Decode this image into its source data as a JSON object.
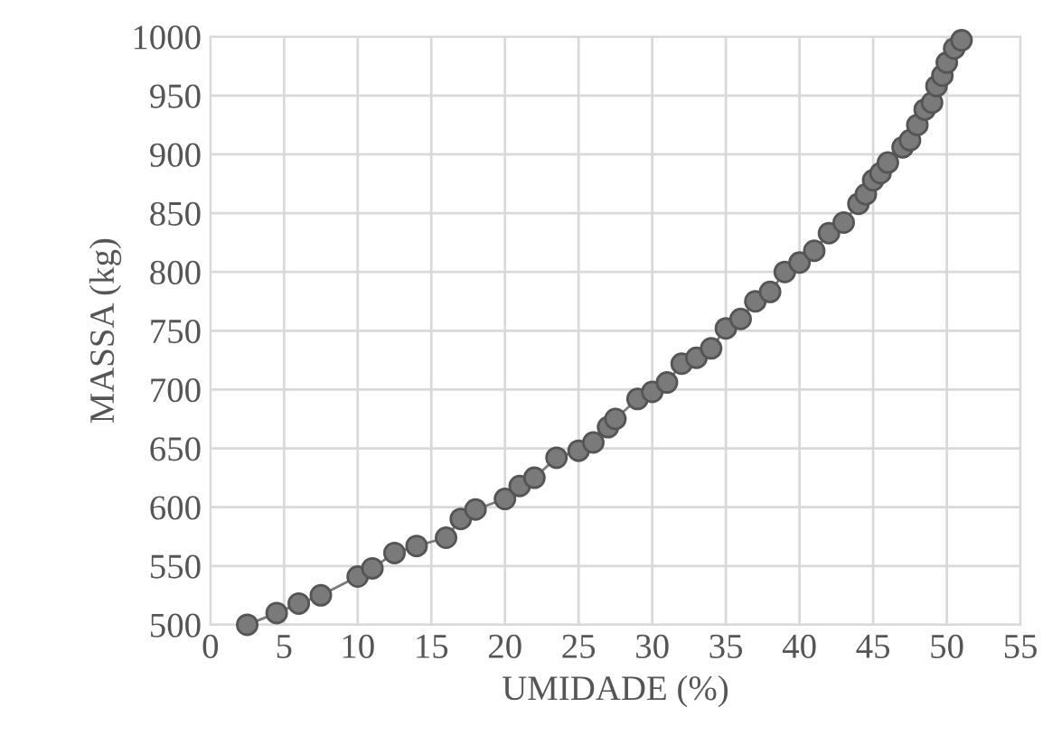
{
  "chart_data": {
    "type": "line",
    "xlabel": "UMIDADE (%)",
    "ylabel": "MASSA (kg)",
    "series": [
      {
        "color": "#7a7a7a",
        "x": [
          2.5,
          4.5,
          6,
          7.5,
          10,
          11,
          12.5,
          14,
          16,
          17,
          18,
          20,
          21,
          22,
          23.5,
          25,
          26,
          27,
          27.5,
          29,
          30,
          31,
          32,
          33,
          34,
          35,
          36,
          37,
          38,
          39,
          40,
          41,
          42,
          43,
          44,
          44.5,
          45,
          45.5,
          46,
          47,
          47.5,
          48,
          48.5,
          49,
          49.3,
          49.7,
          50,
          50.5,
          51
        ],
        "values": [
          500,
          510,
          518,
          525,
          541,
          548,
          561,
          567,
          574,
          590,
          598,
          607,
          618,
          625,
          642,
          648,
          655,
          668,
          675,
          692,
          698,
          706,
          722,
          727,
          735,
          752,
          760,
          775,
          783,
          800,
          808,
          818,
          833,
          842,
          858,
          866,
          878,
          884,
          893,
          906,
          912,
          925,
          938,
          944,
          958,
          967,
          978,
          990,
          997
        ]
      }
    ],
    "xlim": [
      0,
      55
    ],
    "xticks": [
      0,
      5,
      10,
      15,
      20,
      25,
      30,
      35,
      40,
      45,
      50,
      55
    ],
    "ylim": [
      500,
      1000
    ],
    "yticks": [
      500,
      550,
      600,
      650,
      700,
      750,
      800,
      850,
      900,
      950,
      1000
    ],
    "grid": true,
    "marker": "circle",
    "line_style": "solid"
  }
}
